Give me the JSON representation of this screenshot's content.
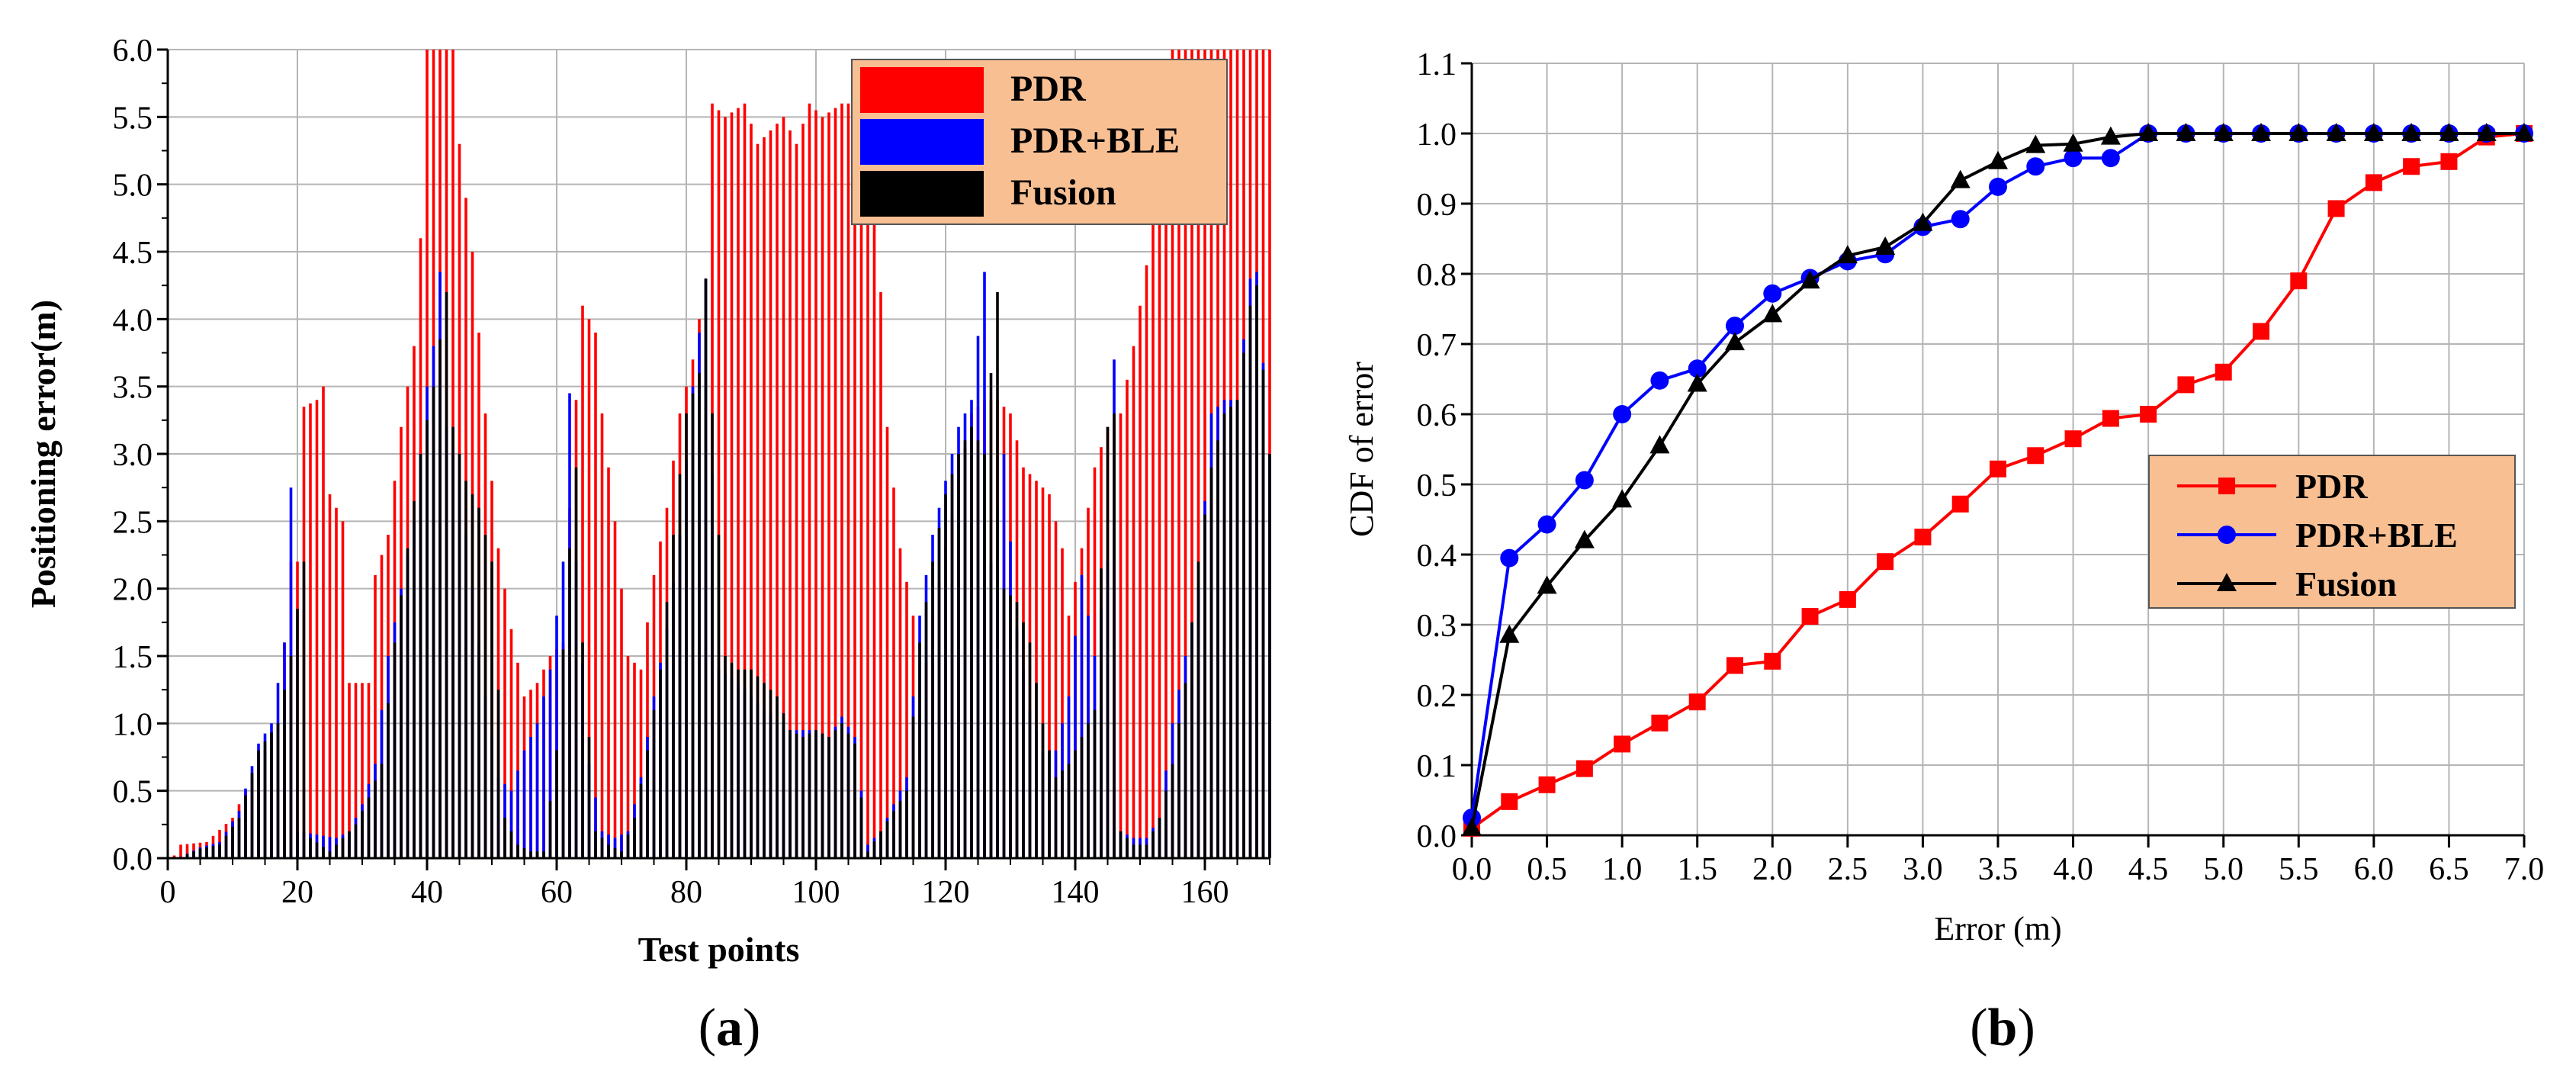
{
  "chart_data": [
    {
      "id": "a",
      "type": "bar",
      "caption": "(a)",
      "xlabel": "Test points",
      "ylabel": "Positioning error(m)",
      "xlim": [
        0,
        170
      ],
      "ylim": [
        0,
        6.0
      ],
      "xticks": [
        0,
        20,
        40,
        60,
        80,
        100,
        120,
        140,
        160
      ],
      "yticks": [
        0.0,
        0.5,
        1.0,
        1.5,
        2.0,
        2.5,
        3.0,
        3.5,
        4.0,
        4.5,
        5.0,
        5.5,
        6.0
      ],
      "grid": true,
      "legend_position": "top-right",
      "legend_bg": "#F8BF93",
      "series": [
        {
          "name": "PDR",
          "color": "#FF0000"
        },
        {
          "name": "PDR+BLE",
          "color": "#0000FF"
        },
        {
          "name": "Fusion",
          "color": "#000000"
        }
      ],
      "anchors": {
        "PDR": [
          [
            1,
            0.02
          ],
          [
            2,
            0.1
          ],
          [
            6,
            0.12
          ],
          [
            10,
            0.3
          ],
          [
            13,
            0.6
          ],
          [
            17,
            1.0
          ],
          [
            19,
            2.2
          ],
          [
            20,
            2.2
          ],
          [
            21,
            3.35
          ],
          [
            23,
            3.4
          ],
          [
            24,
            3.5
          ],
          [
            25,
            2.7
          ],
          [
            27,
            2.5
          ],
          [
            28,
            1.3
          ],
          [
            31,
            1.3
          ],
          [
            32,
            2.1
          ],
          [
            34,
            2.4
          ],
          [
            36,
            3.2
          ],
          [
            38,
            3.8
          ],
          [
            39,
            4.6
          ],
          [
            40,
            6.0
          ],
          [
            44,
            6.0
          ],
          [
            45,
            5.3
          ],
          [
            47,
            4.5
          ],
          [
            49,
            3.3
          ],
          [
            51,
            2.3
          ],
          [
            53,
            1.7
          ],
          [
            55,
            1.2
          ],
          [
            57,
            1.3
          ],
          [
            59,
            1.5
          ],
          [
            61,
            1.6
          ],
          [
            62,
            2.6
          ],
          [
            63,
            3.4
          ],
          [
            64,
            4.1
          ],
          [
            66,
            3.9
          ],
          [
            67,
            3.3
          ],
          [
            69,
            2.5
          ],
          [
            71,
            1.5
          ],
          [
            73,
            1.4
          ],
          [
            75,
            2.1
          ],
          [
            77,
            2.6
          ],
          [
            79,
            3.3
          ],
          [
            81,
            3.7
          ],
          [
            83,
            4.3
          ],
          [
            84,
            5.6
          ],
          [
            86,
            5.5
          ],
          [
            89,
            5.6
          ],
          [
            91,
            5.3
          ],
          [
            93,
            5.4
          ],
          [
            95,
            5.5
          ],
          [
            97,
            5.3
          ],
          [
            99,
            5.6
          ],
          [
            101,
            5.5
          ],
          [
            104,
            5.6
          ],
          [
            106,
            5.6
          ],
          [
            108,
            5.2
          ],
          [
            110,
            4.2
          ],
          [
            111,
            3.2
          ],
          [
            113,
            2.3
          ],
          [
            115,
            1.8
          ],
          [
            116,
            1.1
          ],
          [
            118,
            1.8
          ],
          [
            120,
            2.3
          ],
          [
            122,
            2.8
          ],
          [
            124,
            3.3
          ],
          [
            126,
            3.4
          ],
          [
            128,
            3.4
          ],
          [
            130,
            3.3
          ],
          [
            132,
            2.9
          ],
          [
            134,
            2.8
          ],
          [
            136,
            2.7
          ],
          [
            138,
            2.3
          ],
          [
            139,
            1.8
          ],
          [
            141,
            2.3
          ],
          [
            143,
            2.9
          ],
          [
            145,
            3.2
          ],
          [
            147,
            3.3
          ],
          [
            149,
            3.8
          ],
          [
            151,
            4.4
          ],
          [
            153,
            5.4
          ],
          [
            155,
            6.0
          ],
          [
            170,
            6.0
          ]
        ],
        "PDR+BLE": [
          [
            2,
            0.01
          ],
          [
            5,
            0.08
          ],
          [
            8,
            0.12
          ],
          [
            11,
            0.35
          ],
          [
            14,
            0.85
          ],
          [
            16,
            1.0
          ],
          [
            18,
            1.6
          ],
          [
            19,
            2.75
          ],
          [
            20,
            0.2
          ],
          [
            26,
            0.15
          ],
          [
            28,
            0.2
          ],
          [
            30,
            0.4
          ],
          [
            32,
            0.7
          ],
          [
            34,
            1.5
          ],
          [
            36,
            2.0
          ],
          [
            38,
            2.5
          ],
          [
            40,
            3.5
          ],
          [
            41,
            3.8
          ],
          [
            42,
            4.35
          ],
          [
            43,
            3.2
          ],
          [
            45,
            2.8
          ],
          [
            47,
            2.0
          ],
          [
            49,
            1.2
          ],
          [
            51,
            0.6
          ],
          [
            53,
            0.5
          ],
          [
            55,
            0.8
          ],
          [
            57,
            1.0
          ],
          [
            59,
            1.4
          ],
          [
            61,
            2.2
          ],
          [
            62,
            3.45
          ],
          [
            63,
            2.2
          ],
          [
            65,
            0.7
          ],
          [
            67,
            0.2
          ],
          [
            69,
            0.15
          ],
          [
            71,
            0.2
          ],
          [
            73,
            0.6
          ],
          [
            75,
            1.2
          ],
          [
            77,
            1.7
          ],
          [
            79,
            2.4
          ],
          [
            81,
            3.5
          ],
          [
            83,
            4.3
          ],
          [
            85,
            1.4
          ],
          [
            88,
            1.3
          ],
          [
            92,
            1.1
          ],
          [
            96,
            0.95
          ],
          [
            100,
            0.95
          ],
          [
            102,
            0.9
          ],
          [
            104,
            1.05
          ],
          [
            106,
            0.9
          ],
          [
            108,
            0.1
          ],
          [
            110,
            0.2
          ],
          [
            112,
            0.4
          ],
          [
            114,
            0.6
          ],
          [
            116,
            1.8
          ],
          [
            118,
            2.4
          ],
          [
            120,
            2.8
          ],
          [
            122,
            3.2
          ],
          [
            124,
            3.4
          ],
          [
            126,
            4.35
          ],
          [
            127,
            2.2
          ],
          [
            129,
            3.0
          ],
          [
            131,
            1.7
          ],
          [
            133,
            1.1
          ],
          [
            135,
            0.8
          ],
          [
            137,
            0.8
          ],
          [
            139,
            1.2
          ],
          [
            141,
            2.1
          ],
          [
            143,
            1.5
          ],
          [
            145,
            2.2
          ],
          [
            146,
            3.7
          ],
          [
            147,
            0.2
          ],
          [
            149,
            0.15
          ],
          [
            151,
            0.15
          ],
          [
            153,
            0.3
          ],
          [
            155,
            1.0
          ],
          [
            157,
            1.5
          ],
          [
            159,
            2.0
          ],
          [
            161,
            3.3
          ],
          [
            163,
            3.4
          ],
          [
            165,
            3.4
          ],
          [
            167,
            4.3
          ],
          [
            168,
            4.35
          ],
          [
            170,
            3.0
          ]
        ],
        "Fusion": [
          [
            2,
            0.01
          ],
          [
            5,
            0.07
          ],
          [
            8,
            0.1
          ],
          [
            11,
            0.3
          ],
          [
            14,
            0.8
          ],
          [
            17,
            1.0
          ],
          [
            19,
            1.5
          ],
          [
            21,
            2.2
          ],
          [
            22,
            0.15
          ],
          [
            25,
            0.05
          ],
          [
            27,
            0.15
          ],
          [
            29,
            0.25
          ],
          [
            31,
            0.45
          ],
          [
            33,
            0.7
          ],
          [
            35,
            1.6
          ],
          [
            37,
            2.3
          ],
          [
            39,
            3.0
          ],
          [
            41,
            3.5
          ],
          [
            43,
            4.2
          ],
          [
            44,
            3.2
          ],
          [
            46,
            2.8
          ],
          [
            48,
            2.6
          ],
          [
            50,
            2.2
          ],
          [
            52,
            0.3
          ],
          [
            54,
            0.1
          ],
          [
            56,
            0.05
          ],
          [
            58,
            0.05
          ],
          [
            60,
            0.8
          ],
          [
            62,
            2.3
          ],
          [
            63,
            2.9
          ],
          [
            64,
            1.6
          ],
          [
            66,
            0.2
          ],
          [
            68,
            0.1
          ],
          [
            70,
            0.05
          ],
          [
            72,
            0.3
          ],
          [
            74,
            0.8
          ],
          [
            76,
            1.4
          ],
          [
            78,
            2.4
          ],
          [
            80,
            3.3
          ],
          [
            82,
            3.6
          ],
          [
            83,
            4.3
          ],
          [
            84,
            3.3
          ],
          [
            86,
            1.5
          ],
          [
            88,
            1.4
          ],
          [
            90,
            1.4
          ],
          [
            92,
            1.3
          ],
          [
            94,
            1.2
          ],
          [
            96,
            0.95
          ],
          [
            98,
            0.9
          ],
          [
            100,
            0.95
          ],
          [
            102,
            0.9
          ],
          [
            104,
            1.0
          ],
          [
            106,
            0.85
          ],
          [
            108,
            0.05
          ],
          [
            110,
            0.2
          ],
          [
            112,
            0.35
          ],
          [
            114,
            0.5
          ],
          [
            116,
            1.6
          ],
          [
            118,
            2.2
          ],
          [
            120,
            2.7
          ],
          [
            122,
            3.0
          ],
          [
            124,
            3.2
          ],
          [
            126,
            3.0
          ],
          [
            128,
            4.2
          ],
          [
            129,
            2.0
          ],
          [
            131,
            1.9
          ],
          [
            133,
            1.6
          ],
          [
            135,
            1.0
          ],
          [
            137,
            0.6
          ],
          [
            139,
            0.7
          ],
          [
            141,
            0.9
          ],
          [
            143,
            1.1
          ],
          [
            145,
            3.2
          ],
          [
            146,
            3.3
          ],
          [
            147,
            0.2
          ],
          [
            149,
            0.1
          ],
          [
            151,
            0.1
          ],
          [
            153,
            0.3
          ],
          [
            155,
            0.7
          ],
          [
            157,
            1.3
          ],
          [
            159,
            2.2
          ],
          [
            161,
            2.9
          ],
          [
            163,
            3.3
          ],
          [
            165,
            3.4
          ],
          [
            167,
            4.1
          ],
          [
            168,
            4.25
          ],
          [
            170,
            3.0
          ]
        ]
      }
    },
    {
      "id": "b",
      "type": "line",
      "caption": "(b)",
      "xlabel": "Error (m)",
      "ylabel": "CDF of error",
      "xlim": [
        0,
        7.0
      ],
      "ylim": [
        0,
        1.1
      ],
      "xticks": [
        0.0,
        0.5,
        1.0,
        1.5,
        2.0,
        2.5,
        3.0,
        3.5,
        4.0,
        4.5,
        5.0,
        5.5,
        6.0,
        6.5,
        7.0
      ],
      "yticks": [
        0.0,
        0.1,
        0.2,
        0.3,
        0.4,
        0.5,
        0.6,
        0.7,
        0.8,
        0.9,
        1.0,
        1.1
      ],
      "grid": true,
      "legend_position": "center-right",
      "legend_bg": "#F8BF93",
      "series": [
        {
          "name": "PDR",
          "color": "#FF0000",
          "marker": "square",
          "x": [
            0.0,
            0.25,
            0.5,
            0.75,
            1.0,
            1.25,
            1.5,
            1.75,
            2.0,
            2.25,
            2.5,
            2.75,
            3.0,
            3.25,
            3.5,
            3.75,
            4.0,
            4.25,
            4.5,
            4.75,
            5.0,
            5.25,
            5.5,
            5.75,
            6.0,
            6.25,
            6.5,
            6.75,
            7.0
          ],
          "y": [
            0.01,
            0.048,
            0.072,
            0.095,
            0.13,
            0.16,
            0.19,
            0.242,
            0.248,
            0.312,
            0.336,
            0.39,
            0.425,
            0.472,
            0.522,
            0.541,
            0.565,
            0.594,
            0.6,
            0.642,
            0.66,
            0.718,
            0.79,
            0.893,
            0.93,
            0.953,
            0.96,
            0.995,
            1.0
          ]
        },
        {
          "name": "PDR+BLE",
          "color": "#0000FF",
          "marker": "circle",
          "x": [
            0.0,
            0.25,
            0.5,
            0.75,
            1.0,
            1.25,
            1.5,
            1.75,
            2.0,
            2.25,
            2.5,
            2.75,
            3.0,
            3.25,
            3.5,
            3.75,
            4.0,
            4.25,
            4.5,
            4.75,
            5.0,
            5.25,
            5.5,
            5.75,
            6.0,
            6.25,
            6.5,
            6.75,
            7.0
          ],
          "y": [
            0.025,
            0.395,
            0.443,
            0.506,
            0.6,
            0.648,
            0.665,
            0.726,
            0.772,
            0.794,
            0.818,
            0.828,
            0.867,
            0.878,
            0.924,
            0.953,
            0.965,
            0.965,
            1.0,
            1.0,
            1.0,
            1.0,
            1.0,
            1.0,
            1.0,
            1.0,
            1.0,
            1.0,
            1.0
          ]
        },
        {
          "name": "Fusion",
          "color": "#000000",
          "marker": "triangle",
          "x": [
            0.0,
            0.25,
            0.5,
            0.75,
            1.0,
            1.25,
            1.5,
            1.75,
            2.0,
            2.25,
            2.5,
            2.75,
            3.0,
            3.25,
            3.5,
            3.75,
            4.0,
            4.25,
            4.5,
            4.75,
            5.0,
            5.25,
            5.5,
            5.75,
            6.0,
            6.25,
            6.5,
            6.75,
            7.0
          ],
          "y": [
            0.01,
            0.285,
            0.355,
            0.42,
            0.478,
            0.555,
            0.643,
            0.702,
            0.742,
            0.79,
            0.826,
            0.838,
            0.872,
            0.933,
            0.96,
            0.983,
            0.985,
            0.995,
            1.0,
            1.0,
            1.0,
            1.0,
            1.0,
            1.0,
            1.0,
            1.0,
            1.0,
            1.0,
            1.0
          ]
        }
      ]
    }
  ]
}
